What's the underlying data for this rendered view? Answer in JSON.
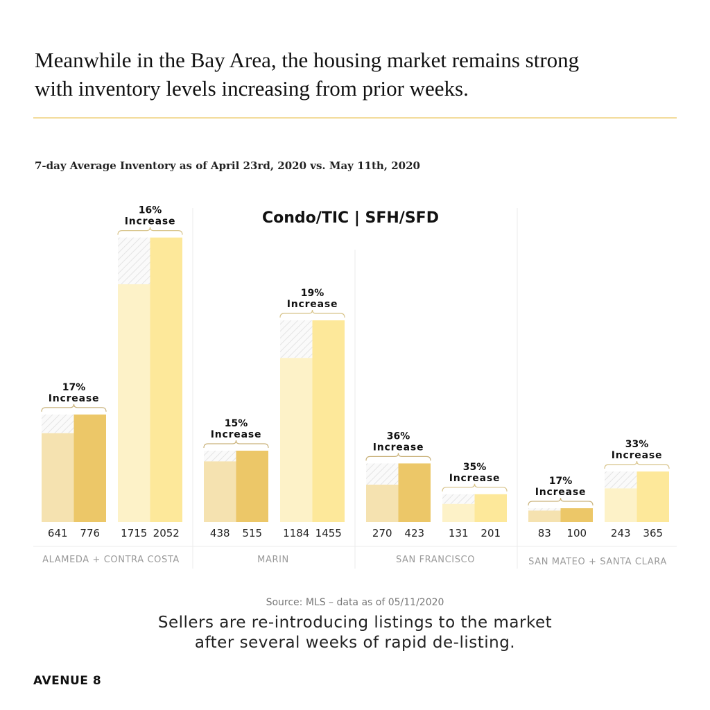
{
  "header": {
    "title_line1": "Meanwhile in the Bay Area, the housing market remains strong",
    "title_line2": "with inventory levels increasing from prior weeks."
  },
  "chart_data": {
    "type": "bar",
    "title": "7-day Average Inventory as of April 23rd, 2020 vs. May 11th, 2020",
    "legend_text": "Condo/TIC | SFH/SFD",
    "ylim": [
      0,
      2100
    ],
    "grid": false,
    "colors": {
      "condo_before": "#f5e2b0",
      "condo_after": "#ecc768",
      "sfh_before": "#fdf2c8",
      "sfh_after": "#fde89a",
      "hatch": "#e6e6e6"
    },
    "regions": [
      {
        "name": "ALAMEDA + CONTRA COSTA",
        "groups": [
          {
            "type": "Condo/TIC",
            "before": 641,
            "after": 776,
            "label_pct": "17%",
            "label_word": "Increase"
          },
          {
            "type": "SFH/SFD",
            "before": 1715,
            "after": 2052,
            "label_pct": "16%",
            "label_word": "Increase"
          }
        ]
      },
      {
        "name": "MARIN",
        "groups": [
          {
            "type": "Condo/TIC",
            "before": 438,
            "after": 515,
            "label_pct": "15%",
            "label_word": "Increase"
          },
          {
            "type": "SFH/SFD",
            "before": 1184,
            "after": 1455,
            "label_pct": "19%",
            "label_word": "Increase"
          }
        ]
      },
      {
        "name": "SAN FRANCISCO",
        "groups": [
          {
            "type": "Condo/TIC",
            "before": 270,
            "after": 423,
            "label_pct": "36%",
            "label_word": "Increase"
          },
          {
            "type": "SFH/SFD",
            "before": 131,
            "after": 201,
            "label_pct": "35%",
            "label_word": "Increase"
          }
        ]
      },
      {
        "name": "SAN MATEO + SANTA CLARA",
        "groups": [
          {
            "type": "Condo/TIC",
            "before": 83,
            "after": 100,
            "label_pct": "17%",
            "label_word": "Increase"
          },
          {
            "type": "SFH/SFD",
            "before": 243,
            "after": 365,
            "label_pct": "33%",
            "label_word": "Increase"
          }
        ]
      }
    ]
  },
  "footer": {
    "source": "Source: MLS – data as of 05/11/2020",
    "caption_line1": "Sellers are re-introducing listings to the market",
    "caption_line2": "after several weeks of rapid de-listing.",
    "brand": "AVENUE 8"
  }
}
